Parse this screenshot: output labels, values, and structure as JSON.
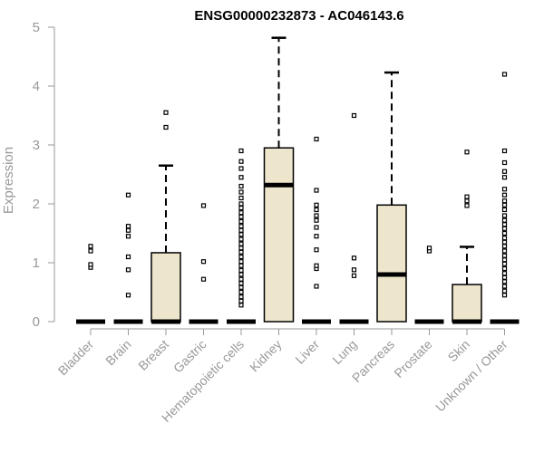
{
  "chart_data": {
    "type": "box",
    "title": "ENSG00000232873 - AC046143.6",
    "xlabel": "",
    "ylabel": "Expression",
    "ylim": [
      0,
      5
    ],
    "yticks": [
      0,
      1,
      2,
      3,
      4,
      5
    ],
    "box_fill": "#ede6cc",
    "line_color": "#000000",
    "categories": [
      "Bladder",
      "Brain",
      "Breast",
      "Gastric",
      "Hematopoietic cells",
      "Kidney",
      "Liver",
      "Lung",
      "Pancreas",
      "Prostate",
      "Skin",
      "Unknown / Other"
    ],
    "boxes": [
      {
        "category": "Bladder",
        "q1": 0,
        "median": 0,
        "q3": 0,
        "whisker_low": 0,
        "whisker_high": 0,
        "outliers": [
          0.92,
          0.97,
          1.2,
          1.28
        ]
      },
      {
        "category": "Brain",
        "q1": 0,
        "median": 0,
        "q3": 0,
        "whisker_low": 0,
        "whisker_high": 0,
        "outliers": [
          0.45,
          0.88,
          1.1,
          1.45,
          1.55,
          1.62,
          2.15
        ]
      },
      {
        "category": "Breast",
        "q1": 0,
        "median": 0,
        "q3": 1.17,
        "whisker_low": 0,
        "whisker_high": 2.65,
        "outliers": [
          3.3,
          3.55
        ]
      },
      {
        "category": "Gastric",
        "q1": 0,
        "median": 0,
        "q3": 0,
        "whisker_low": 0,
        "whisker_high": 0,
        "outliers": [
          0.72,
          1.02,
          1.97
        ]
      },
      {
        "category": "Hematopoietic cells",
        "q1": 0,
        "median": 0,
        "q3": 0,
        "whisker_low": 0,
        "whisker_high": 0,
        "outliers": [
          0.28,
          0.35,
          0.42,
          0.5,
          0.58,
          0.65,
          0.72,
          0.8,
          0.87,
          0.95,
          1.02,
          1.1,
          1.18,
          1.25,
          1.32,
          1.4,
          1.48,
          1.55,
          1.62,
          1.7,
          1.78,
          1.85,
          1.93,
          2.0,
          2.1,
          2.2,
          2.3,
          2.45,
          2.6,
          2.72,
          2.9
        ]
      },
      {
        "category": "Kidney",
        "q1": 0,
        "median": 2.32,
        "q3": 2.95,
        "whisker_low": 0,
        "whisker_high": 4.82,
        "outliers": []
      },
      {
        "category": "Liver",
        "q1": 0,
        "median": 0,
        "q3": 0,
        "whisker_low": 0,
        "whisker_high": 0,
        "outliers": [
          0.6,
          0.9,
          0.95,
          1.22,
          1.45,
          1.6,
          1.72,
          1.8,
          1.9,
          1.98,
          2.23,
          3.1
        ]
      },
      {
        "category": "Lung",
        "q1": 0,
        "median": 0,
        "q3": 0,
        "whisker_low": 0,
        "whisker_high": 0,
        "outliers": [
          0.78,
          0.88,
          1.08,
          3.5
        ]
      },
      {
        "category": "Pancreas",
        "q1": 0,
        "median": 0.8,
        "q3": 1.98,
        "whisker_low": 0,
        "whisker_high": 4.23,
        "outliers": []
      },
      {
        "category": "Prostate",
        "q1": 0,
        "median": 0,
        "q3": 0,
        "whisker_low": 0,
        "whisker_high": 0,
        "outliers": [
          1.2,
          1.25
        ]
      },
      {
        "category": "Skin",
        "q1": 0,
        "median": 0,
        "q3": 0.63,
        "whisker_low": 0,
        "whisker_high": 1.27,
        "outliers": [
          1.97,
          2.05,
          2.12,
          2.88
        ]
      },
      {
        "category": "Unknown / Other",
        "q1": 0,
        "median": 0,
        "q3": 0,
        "whisker_low": 0,
        "whisker_high": 0,
        "outliers": [
          0.45,
          0.52,
          0.6,
          0.68,
          0.75,
          0.82,
          0.9,
          0.98,
          1.05,
          1.12,
          1.2,
          1.28,
          1.35,
          1.42,
          1.5,
          1.58,
          1.65,
          1.72,
          1.8,
          1.9,
          1.98,
          2.05,
          2.15,
          2.25,
          2.45,
          2.55,
          2.7,
          2.9,
          4.2
        ]
      }
    ]
  }
}
